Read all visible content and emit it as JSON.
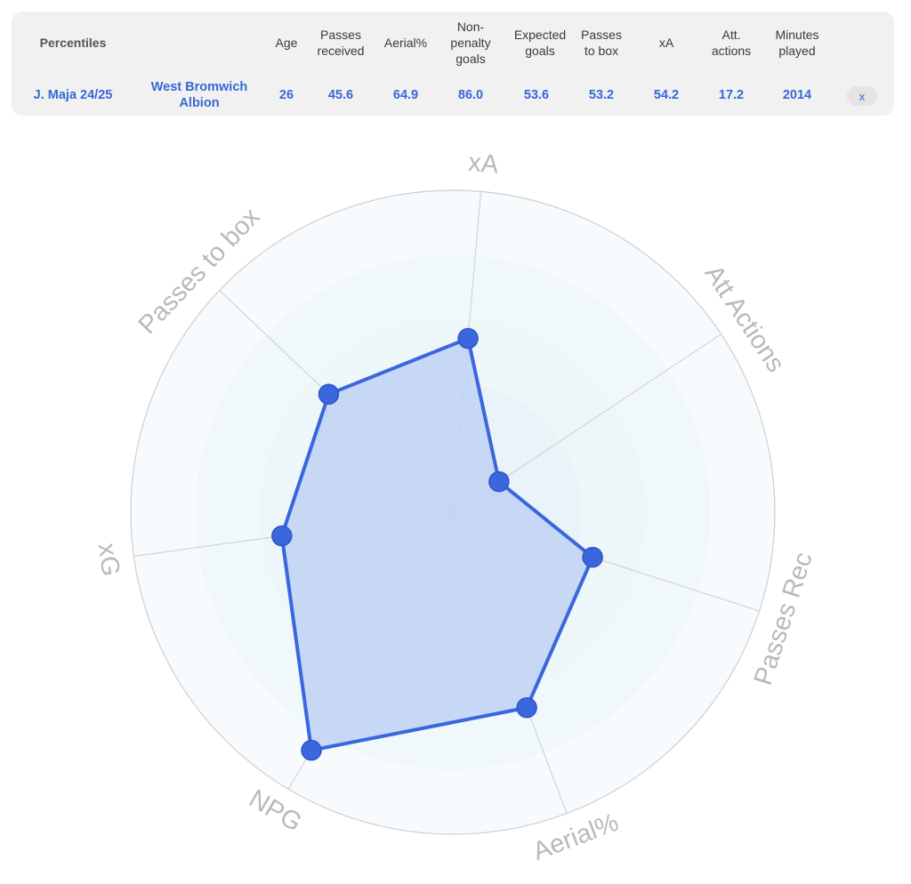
{
  "table": {
    "title": "Percentiles",
    "headers": [
      "Age",
      "Passes\nreceived",
      "Aerial%",
      "Non-\npenalty\ngoals",
      "Expected\ngoals",
      "Passes\nto box",
      "xA",
      "Att.\nactions",
      "Minutes\nplayed"
    ],
    "row": {
      "player": "J. Maja 24/25",
      "team": "West Bromwich\nAlbion",
      "values": [
        "26",
        "45.6",
        "64.9",
        "86.0",
        "53.6",
        "53.2",
        "54.2",
        "17.2",
        "2014"
      ]
    },
    "close_label": "x"
  },
  "chart_data": {
    "type": "radar",
    "axes": [
      "xA",
      "Att Actions",
      "Passes Rec",
      "Aerial%",
      "NPG",
      "xG",
      "Passes to box"
    ],
    "values": [
      54.2,
      17.2,
      45.6,
      64.9,
      86.0,
      53.6,
      53.2
    ],
    "range": [
      0,
      100
    ],
    "colors": {
      "line": "#3a66de",
      "fill": "#bfd2f5",
      "point": "#3a66de",
      "rings": "#eef6f9",
      "spokes": "#cdcdcd",
      "labels": "#b9b9b9"
    }
  }
}
